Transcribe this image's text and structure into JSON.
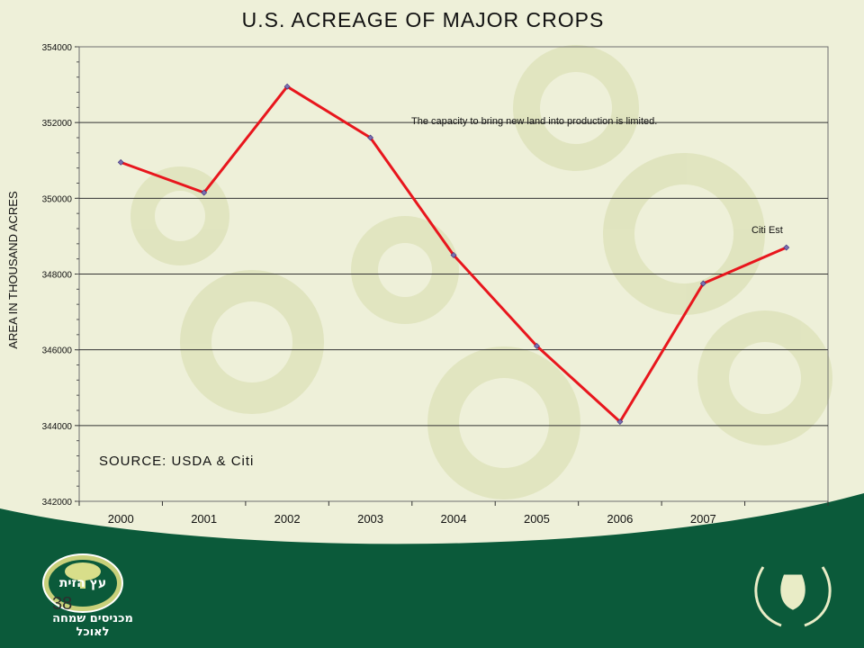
{
  "chart_data": {
    "type": "line",
    "title": "U.S. ACREAGE OF MAJOR CROPS",
    "ylabel": "AREA IN THOUSAND ACRES",
    "xlabel": "",
    "categories": [
      "2000",
      "2001",
      "2002",
      "2003",
      "2004",
      "2005",
      "2006",
      "2007",
      ""
    ],
    "series": [
      {
        "values": [
          350950,
          350150,
          352950,
          351600,
          348500,
          346100,
          344100,
          347750,
          348700
        ],
        "color": "#e8161d"
      }
    ],
    "ylim": [
      342000,
      354000
    ],
    "yticks": [
      "342000",
      "344000",
      "346000",
      "348000",
      "350000",
      "352000",
      "354000"
    ],
    "grid": true,
    "annotations": {
      "capacity_note": "The capacity to bring new land into production is limited.",
      "citi_est": "Citi Est",
      "source": "SOURCE: USDA & Citi"
    }
  },
  "footer": {
    "page_number": "38",
    "left_logo_text": "עץ הזית",
    "left_logo_tagline": "מכניסים שמחה לאוכל",
    "colors": {
      "band": "#0b5a3a",
      "accent": "#c8d07a"
    }
  }
}
